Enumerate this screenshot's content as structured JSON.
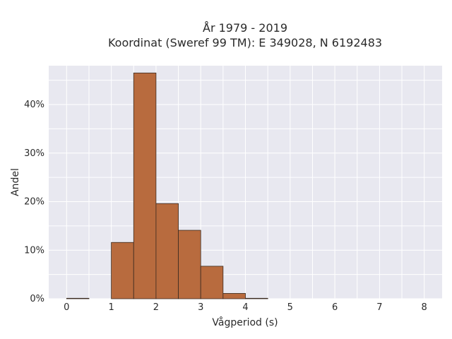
{
  "chart_data": {
    "type": "bar",
    "title_lines": [
      "År 1979 - 2019",
      "Koordinat (Sweref 99 TM): E 349028, N 6192483"
    ],
    "xlabel": "Vågperiod (s)",
    "ylabel": "Andel",
    "xlim": [
      -0.4,
      8.4
    ],
    "ylim": [
      0,
      0.48
    ],
    "x_ticks": [
      {
        "value": 0,
        "label": "0"
      },
      {
        "value": 1,
        "label": "1"
      },
      {
        "value": 2,
        "label": "2"
      },
      {
        "value": 3,
        "label": "3"
      },
      {
        "value": 4,
        "label": "4"
      },
      {
        "value": 5,
        "label": "5"
      },
      {
        "value": 6,
        "label": "6"
      },
      {
        "value": 7,
        "label": "7"
      },
      {
        "value": 8,
        "label": "8"
      }
    ],
    "y_ticks": [
      {
        "value": 0,
        "label": "0%"
      },
      {
        "value": 0.1,
        "label": "10%"
      },
      {
        "value": 0.2,
        "label": "20%"
      },
      {
        "value": 0.3,
        "label": "30%"
      },
      {
        "value": 0.4,
        "label": "40%"
      }
    ],
    "bins": [
      {
        "start": 0.0,
        "end": 0.5,
        "value": 0.001
      },
      {
        "start": 1.0,
        "end": 1.5,
        "value": 0.116
      },
      {
        "start": 1.5,
        "end": 2.0,
        "value": 0.465
      },
      {
        "start": 2.0,
        "end": 2.5,
        "value": 0.196
      },
      {
        "start": 2.5,
        "end": 3.0,
        "value": 0.141
      },
      {
        "start": 3.0,
        "end": 3.5,
        "value": 0.067
      },
      {
        "start": 3.5,
        "end": 4.0,
        "value": 0.011
      },
      {
        "start": 4.0,
        "end": 4.5,
        "value": 0.001
      }
    ],
    "colors": {
      "bar_fill": "#b86b3e",
      "bar_stroke": "#3a2a20",
      "plot_background": "#e8e8f0",
      "grid": "#ffffff"
    },
    "grid": true,
    "legend": "none"
  }
}
